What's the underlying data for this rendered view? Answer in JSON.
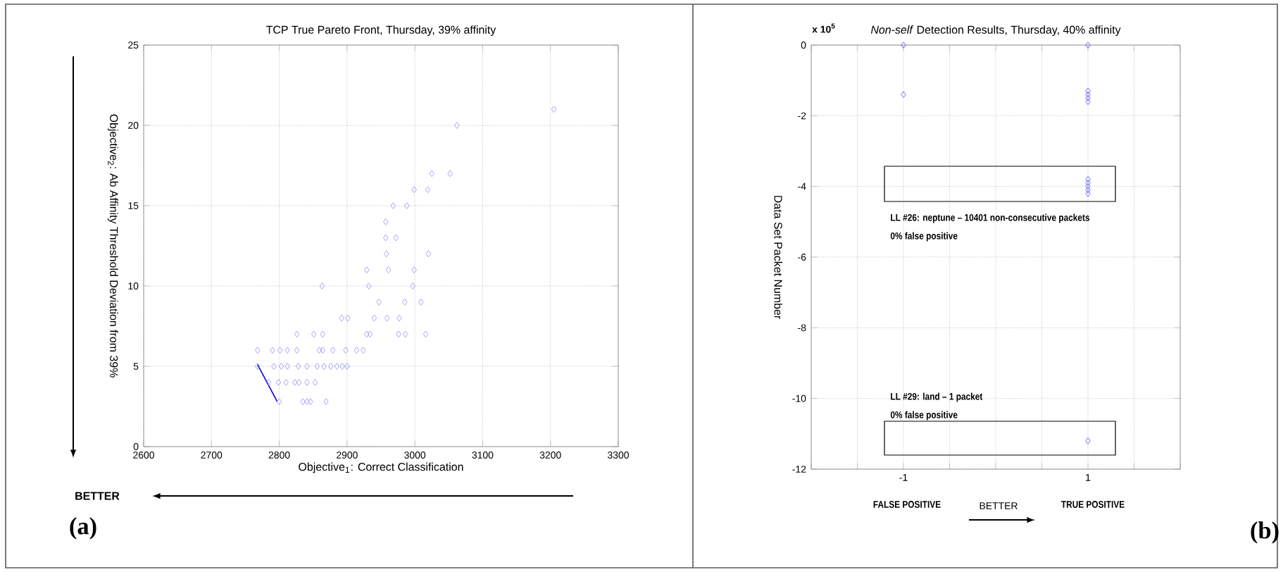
{
  "chart_data": [
    {
      "type": "scatter",
      "title": "TCP True Pareto Front, Thursday, 39% affinity",
      "xlabel": "Objective$_{1}$: Correct Classification",
      "ylabel": "Objective$_{2}$: Ab Affinity Threshold Deviation from 39%",
      "xlim": [
        2600,
        3300
      ],
      "ylim": [
        0,
        25
      ],
      "xticks": [
        2600,
        2700,
        2800,
        2900,
        3000,
        3100,
        3200,
        3300
      ],
      "yticks": [
        0,
        5,
        10,
        15,
        20,
        25
      ],
      "grid": true,
      "marker": "diamond",
      "series": [
        {
          "color": "#8c8cff",
          "x": [
            3205,
            3062,
            3025,
            3052,
            2999,
            3019,
            2968,
            2988,
            2957,
            2957,
            2972,
            2958,
            3020,
            2929,
            2961,
            2999,
            2863,
            2932,
            2997,
            2947,
            2985,
            3009,
            2892,
            2901,
            2940,
            2959,
            2977,
            2826,
            2851,
            2864,
            2929,
            2934,
            2976,
            2986,
            3016,
            2768,
            2790,
            2801,
            2812,
            2826,
            2859,
            2864,
            2879,
            2898,
            2914,
            2924,
            2768,
            2792,
            2803,
            2812,
            2828,
            2841,
            2856,
            2866,
            2876,
            2885,
            2893,
            2900,
            2784,
            2799,
            2810,
            2823,
            2829,
            2841,
            2853,
            2800,
            2835,
            2841,
            2846,
            2869
          ],
          "values": [
            21,
            20,
            17,
            17,
            16,
            16,
            15,
            15,
            14,
            13,
            13,
            12,
            12,
            11,
            11,
            11,
            10,
            10,
            10,
            9,
            9,
            9,
            8,
            8,
            8,
            8,
            8,
            7,
            7,
            7,
            7,
            7,
            7,
            7,
            7,
            6,
            6,
            6,
            6,
            6,
            6,
            6,
            6,
            6,
            6,
            6,
            5,
            5,
            5,
            5,
            5,
            5,
            5,
            5,
            5,
            5,
            5,
            5,
            4,
            4,
            4,
            4,
            4,
            4,
            4,
            2.8,
            2.8,
            2.8,
            2.8,
            2.8
          ]
        },
        {
          "type": "line",
          "marker": "none",
          "color": "#0000ff",
          "x": [
            2768,
            2797
          ],
          "values": [
            5.1,
            2.8
          ]
        }
      ],
      "annotations": [
        "BETTER",
        "(a)"
      ]
    },
    {
      "type": "scatter",
      "title": "*Non-self* Detection Results, Thursday, 40% affinity",
      "ylabel": "Data Set Packet Number",
      "xlim": [
        -2,
        2
      ],
      "ylim": [
        -12,
        0
      ],
      "xticks": [
        {
          "value": -2,
          "label": null
        },
        {
          "value": -1.5,
          "label": null
        },
        -1,
        {
          "value": -0.5,
          "label": null
        },
        {
          "value": 0,
          "label": null
        },
        {
          "value": 0.5,
          "label": null
        },
        1,
        {
          "value": 1.5,
          "label": null
        },
        {
          "value": 2,
          "label": null
        }
      ],
      "yticks": [
        -12,
        -10,
        -8,
        -6,
        -4,
        -2,
        0
      ],
      "grid": true,
      "marker": "diamond",
      "series": [
        {
          "color": "#4a4aff",
          "x": [
            -1,
            1,
            -1,
            1,
            1,
            1,
            1,
            1,
            1,
            1,
            1,
            1,
            1
          ],
          "values": [
            0,
            0,
            -1.4,
            -1.3,
            -1.4,
            -1.5,
            -1.6,
            -3.8,
            -3.9,
            -4.0,
            -4.1,
            -4.2,
            -11.2
          ]
        }
      ],
      "annotations": [
        "x 10$^{5}$",
        "FALSE POSITIVE",
        "BETTER",
        "TRUE POSITIVE",
        "(b)",
        "LL #26: neptune – 10401 non-consecutive packets",
        "0% false positive",
        "LL #29: land – 1 packet",
        "0% false positive"
      ]
    }
  ]
}
